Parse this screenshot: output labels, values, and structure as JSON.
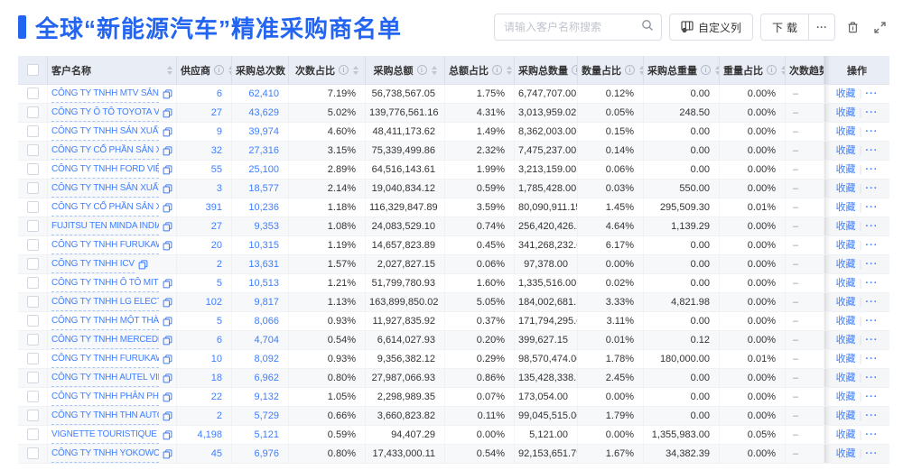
{
  "appearance": {
    "accent_blue": "#2365F0",
    "link_blue": "#3E7EFF",
    "header_bg": "#E9EDF6"
  },
  "header": {
    "title": "全球“新能源汽车”精准采购商名单"
  },
  "toolbar": {
    "search_placeholder": "请输入客户名称搜索",
    "customize_columns_label": "自定义列",
    "download_label": "下载",
    "more_label": "···"
  },
  "table": {
    "columns": [
      {
        "key": "name",
        "label": "客户名称",
        "info": false,
        "sort": true
      },
      {
        "key": "supplier",
        "label": "供应商",
        "info": true,
        "sort": true
      },
      {
        "key": "count",
        "label": "采购总次数",
        "info": true,
        "sort": true
      },
      {
        "key": "count_pct",
        "label": "次数占比",
        "info": true,
        "sort": true
      },
      {
        "key": "amount",
        "label": "采购总额",
        "info": true,
        "sort": true
      },
      {
        "key": "amount_pct",
        "label": "总额占比",
        "info": true,
        "sort": true
      },
      {
        "key": "qty",
        "label": "采购总数量",
        "info": true,
        "sort": true
      },
      {
        "key": "qty_pct",
        "label": "数量占比",
        "info": true,
        "sort": true
      },
      {
        "key": "weight",
        "label": "采购总重量",
        "info": true,
        "sort": true
      },
      {
        "key": "weight_pct",
        "label": "重量占比",
        "info": true,
        "sort": true
      },
      {
        "key": "trend",
        "label": "次数趋势",
        "info": false,
        "sort": false
      },
      {
        "key": "actions",
        "label": "操作",
        "info": false,
        "sort": false
      }
    ],
    "actions": {
      "favorite": "收藏",
      "more": "···",
      "separator": "|"
    },
    "rows": [
      {
        "name": "CÔNG TY TNHH MTV SẢN XUẤ...",
        "supplier": "6",
        "count": "62,410",
        "count_pct": "7.19%",
        "amount": "56,738,567.05",
        "amount_pct": "1.75%",
        "qty": "6,747,707.00",
        "qty_pct": "0.12%",
        "weight": "0.00",
        "weight_pct": "0.00%",
        "trend": "–"
      },
      {
        "name": "CÔNG TY Ô TÔ TOYOTA VIỆT ...",
        "supplier": "27",
        "count": "43,629",
        "count_pct": "5.02%",
        "amount": "139,776,561.16",
        "amount_pct": "4.31%",
        "qty": "3,013,959.02",
        "qty_pct": "0.05%",
        "weight": "248.50",
        "weight_pct": "0.00%",
        "trend": "–"
      },
      {
        "name": "CÔNG TY TNHH SẢN XUẤT VÀ ...",
        "supplier": "9",
        "count": "39,974",
        "count_pct": "4.60%",
        "amount": "48,411,173.62",
        "amount_pct": "1.49%",
        "qty": "8,362,003.00",
        "qty_pct": "0.15%",
        "weight": "0.00",
        "weight_pct": "0.00%",
        "trend": "–"
      },
      {
        "name": "CÔNG TY CỔ PHẦN SẢN XUẤT...",
        "supplier": "32",
        "count": "27,316",
        "count_pct": "3.15%",
        "amount": "75,339,499.86",
        "amount_pct": "2.32%",
        "qty": "7,475,237.00",
        "qty_pct": "0.14%",
        "weight": "0.00",
        "weight_pct": "0.00%",
        "trend": "–"
      },
      {
        "name": "CÔNG TY TNHH FORD VIỆT NAM",
        "supplier": "55",
        "count": "25,100",
        "count_pct": "2.89%",
        "amount": "64,516,143.61",
        "amount_pct": "1.99%",
        "qty": "3,213,159.00",
        "qty_pct": "0.06%",
        "weight": "0.00",
        "weight_pct": "0.00%",
        "trend": "–"
      },
      {
        "name": "CÔNG TY TNHH SẢN XUẤT VÀ ...",
        "supplier": "3",
        "count": "18,577",
        "count_pct": "2.14%",
        "amount": "19,040,834.12",
        "amount_pct": "0.59%",
        "qty": "1,785,428.00",
        "qty_pct": "0.03%",
        "weight": "550.00",
        "weight_pct": "0.00%",
        "trend": "–"
      },
      {
        "name": "CÔNG TY CỔ PHẦN SẢN XUẤT...",
        "supplier": "391",
        "count": "10,236",
        "count_pct": "1.18%",
        "amount": "116,329,847.89",
        "amount_pct": "3.59%",
        "qty": "80,090,911.15",
        "qty_pct": "1.45%",
        "weight": "295,509.30",
        "weight_pct": "0.01%",
        "trend": "–"
      },
      {
        "name": "FUJITSU TEN MINDA INDIA PVT...",
        "supplier": "27",
        "count": "9,353",
        "count_pct": "1.08%",
        "amount": "24,083,529.10",
        "amount_pct": "0.74%",
        "qty": "256,420,426.29",
        "qty_pct": "4.64%",
        "weight": "1,139.29",
        "weight_pct": "0.00%",
        "trend": "–"
      },
      {
        "name": "CÔNG TY TNHH FURUKAWA A...",
        "supplier": "20",
        "count": "10,315",
        "count_pct": "1.19%",
        "amount": "14,657,823.89",
        "amount_pct": "0.45%",
        "qty": "341,268,232.00",
        "qty_pct": "6.17%",
        "weight": "0.00",
        "weight_pct": "0.00%",
        "trend": "–"
      },
      {
        "name": "CÔNG TY TNHH ICV",
        "supplier": "2",
        "count": "13,631",
        "count_pct": "1.57%",
        "amount": "2,027,827.15",
        "amount_pct": "0.06%",
        "qty": "97,378.00",
        "qty_pct": "0.00%",
        "weight": "0.00",
        "weight_pct": "0.00%",
        "trend": "–"
      },
      {
        "name": "CÔNG TY TNHH Ô TÔ MITSUBI...",
        "supplier": "5",
        "count": "10,513",
        "count_pct": "1.21%",
        "amount": "51,799,780.93",
        "amount_pct": "1.60%",
        "qty": "1,335,516.00",
        "qty_pct": "0.02%",
        "weight": "0.00",
        "weight_pct": "0.00%",
        "trend": "–"
      },
      {
        "name": "CÔNG TY TNHH LG ELECTRON...",
        "supplier": "102",
        "count": "9,817",
        "count_pct": "1.13%",
        "amount": "163,899,850.02",
        "amount_pct": "5.05%",
        "qty": "184,002,681.15",
        "qty_pct": "3.33%",
        "weight": "4,821.98",
        "weight_pct": "0.00%",
        "trend": "–"
      },
      {
        "name": "CÔNG TY TNHH MỘT THÀNH V...",
        "supplier": "5",
        "count": "8,066",
        "count_pct": "0.93%",
        "amount": "11,927,835.92",
        "amount_pct": "0.37%",
        "qty": "171,794,295.00",
        "qty_pct": "3.11%",
        "weight": "0.00",
        "weight_pct": "0.00%",
        "trend": "–"
      },
      {
        "name": "CÔNG TY TNHH MERCEDES–B...",
        "supplier": "6",
        "count": "4,704",
        "count_pct": "0.54%",
        "amount": "6,614,027.93",
        "amount_pct": "0.20%",
        "qty": "399,627.15",
        "qty_pct": "0.01%",
        "weight": "0.12",
        "weight_pct": "0.00%",
        "trend": "–"
      },
      {
        "name": "CÔNG TY TNHH FURUKAWA A...",
        "supplier": "10",
        "count": "8,092",
        "count_pct": "0.93%",
        "amount": "9,356,382.12",
        "amount_pct": "0.29%",
        "qty": "98,570,474.00",
        "qty_pct": "1.78%",
        "weight": "180,000.00",
        "weight_pct": "0.01%",
        "trend": "–"
      },
      {
        "name": "CÔNG TY TNHH AUTEL VIỆT N...",
        "supplier": "18",
        "count": "6,962",
        "count_pct": "0.80%",
        "amount": "27,987,066.93",
        "amount_pct": "0.86%",
        "qty": "135,428,338.71",
        "qty_pct": "2.45%",
        "weight": "0.00",
        "weight_pct": "0.00%",
        "trend": "–"
      },
      {
        "name": "CÔNG TY TNHH PHÂN PHỐI T...",
        "supplier": "22",
        "count": "9,132",
        "count_pct": "1.05%",
        "amount": "2,298,989.35",
        "amount_pct": "0.07%",
        "qty": "173,054.00",
        "qty_pct": "0.00%",
        "weight": "0.00",
        "weight_pct": "0.00%",
        "trend": "–"
      },
      {
        "name": "CÔNG TY TNHH THN AUTOPAR...",
        "supplier": "2",
        "count": "5,729",
        "count_pct": "0.66%",
        "amount": "3,660,823.82",
        "amount_pct": "0.11%",
        "qty": "99,045,515.00",
        "qty_pct": "1.79%",
        "weight": "0.00",
        "weight_pct": "0.00%",
        "trend": "–"
      },
      {
        "name": "VIGNETTE TOURISTIQUE G UNI...",
        "supplier": "4,198",
        "count": "5,121",
        "count_pct": "0.59%",
        "amount": "94,407.29",
        "amount_pct": "0.00%",
        "qty": "5,121.00",
        "qty_pct": "0.00%",
        "weight": "1,355,983.00",
        "weight_pct": "0.05%",
        "trend": "–"
      },
      {
        "name": "CÔNG TY TNHH YOKOWO VIỆT...",
        "supplier": "45",
        "count": "6,976",
        "count_pct": "0.80%",
        "amount": "17,433,000.11",
        "amount_pct": "0.54%",
        "qty": "92,153,651.79",
        "qty_pct": "1.67%",
        "weight": "34,382.39",
        "weight_pct": "0.00%",
        "trend": "–"
      }
    ]
  }
}
